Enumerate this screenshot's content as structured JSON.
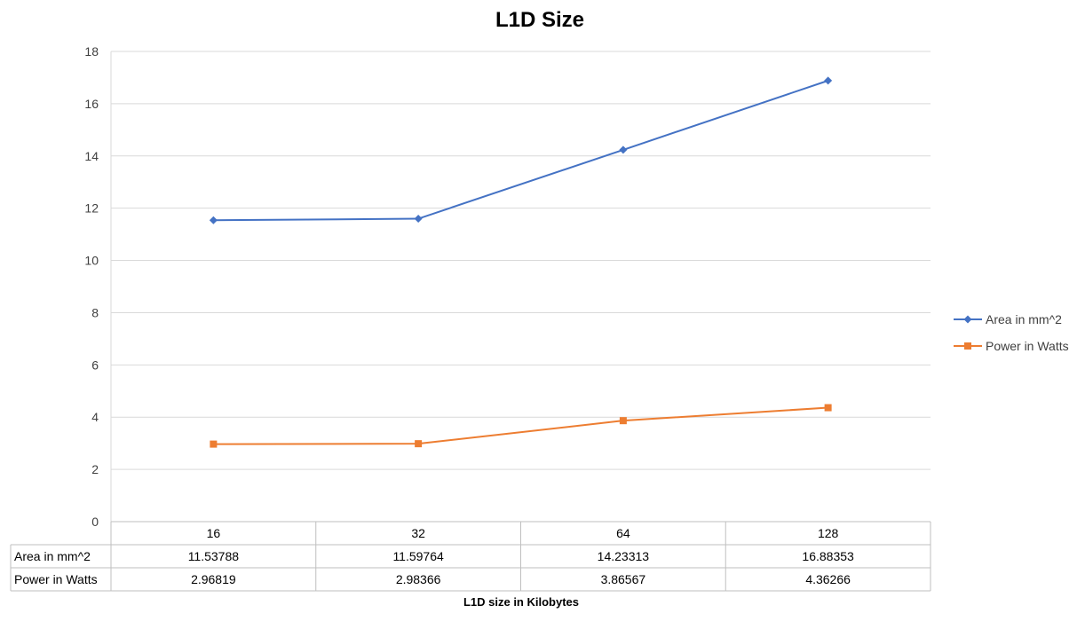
{
  "chart_data": {
    "type": "line",
    "title": "L1D Size",
    "xlabel": "L1D size in Kilobytes",
    "ylabel": "",
    "categories": [
      "16",
      "32",
      "64",
      "128"
    ],
    "ylim": [
      0,
      18
    ],
    "yticks": [
      0,
      2,
      4,
      6,
      8,
      10,
      12,
      14,
      16,
      18
    ],
    "grid": true,
    "legend_position": "right",
    "series": [
      {
        "name": "Area in mm^2",
        "values": [
          11.53788,
          11.59764,
          14.23313,
          16.88353
        ],
        "labels": [
          "11.53788",
          "11.59764",
          "14.23313",
          "16.88353"
        ],
        "color": "#4472C4",
        "marker": "diamond"
      },
      {
        "name": "Power in Watts",
        "values": [
          2.96819,
          2.98366,
          3.86567,
          4.36266
        ],
        "labels": [
          "2.96819",
          "2.98366",
          "3.86567",
          "4.36266"
        ],
        "color": "#ED7D31",
        "marker": "square"
      }
    ]
  }
}
